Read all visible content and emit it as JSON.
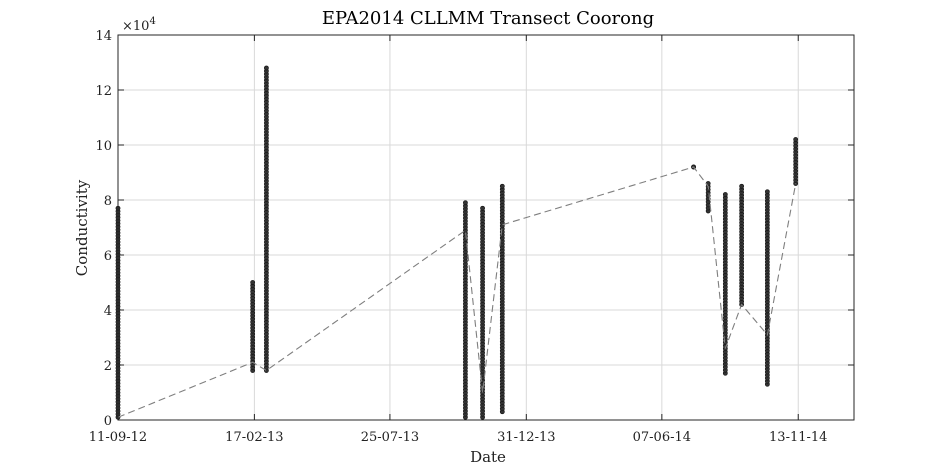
{
  "chart_data": {
    "type": "scatter",
    "title": "EPA2014 CLLMM Transect Coorong",
    "xlabel": "Date",
    "ylabel": "Conductivity",
    "y_exponent_label": "×10",
    "y_exponent_power": "4",
    "x_ticks": [
      "2012-09-11",
      "2013-02-17",
      "2013-07-25",
      "2013-12-31",
      "2014-06-07",
      "2014-11-13"
    ],
    "x_tick_labels": [
      "11-09-12",
      "17-02-13",
      "25-07-13",
      "31-12-13",
      "07-06-14",
      "13-11-14"
    ],
    "y_ticks": [
      0,
      2,
      4,
      6,
      8,
      10,
      12,
      14
    ],
    "xlim": [
      "2012-09-11",
      "2015-01-17"
    ],
    "ylim": [
      0,
      14
    ],
    "grid": true,
    "series": [
      {
        "style": "points",
        "color": "#333333",
        "columns": [
          {
            "x": "2012-09-11",
            "ymin": 0.1,
            "ymax": 7.7
          },
          {
            "x": "2013-02-15",
            "ymin": 1.8,
            "ymax": 5.0
          },
          {
            "x": "2013-03-03",
            "ymin": 1.8,
            "ymax": 12.8
          },
          {
            "x": "2013-10-21",
            "ymin": 0.1,
            "ymax": 7.9
          },
          {
            "x": "2013-11-10",
            "ymin": 0.1,
            "ymax": 7.7
          },
          {
            "x": "2013-12-03",
            "ymin": 0.3,
            "ymax": 8.5
          },
          {
            "x": "2014-07-14",
            "ymin": 9.2,
            "ymax": 9.2
          },
          {
            "x": "2014-07-31",
            "ymin": 7.6,
            "ymax": 8.6
          },
          {
            "x": "2014-08-20",
            "ymin": 1.7,
            "ymax": 8.2
          },
          {
            "x": "2014-09-08",
            "ymin": 4.2,
            "ymax": 8.5
          },
          {
            "x": "2014-10-08",
            "ymin": 1.3,
            "ymax": 8.3
          },
          {
            "x": "2014-11-10",
            "ymin": 8.6,
            "ymax": 10.2
          }
        ]
      },
      {
        "style": "dashed-line",
        "color": "#7f7f7f",
        "x": [
          "2012-09-11",
          "2013-02-15",
          "2013-03-03",
          "2013-10-21",
          "2013-11-10",
          "2013-12-03",
          "2014-07-14",
          "2014-07-31",
          "2014-08-20",
          "2014-09-08",
          "2014-10-08",
          "2014-11-10"
        ],
        "y": [
          0.1,
          2.1,
          1.8,
          6.9,
          1.0,
          7.1,
          9.2,
          8.5,
          2.6,
          4.2,
          3.1,
          8.6
        ]
      }
    ]
  }
}
